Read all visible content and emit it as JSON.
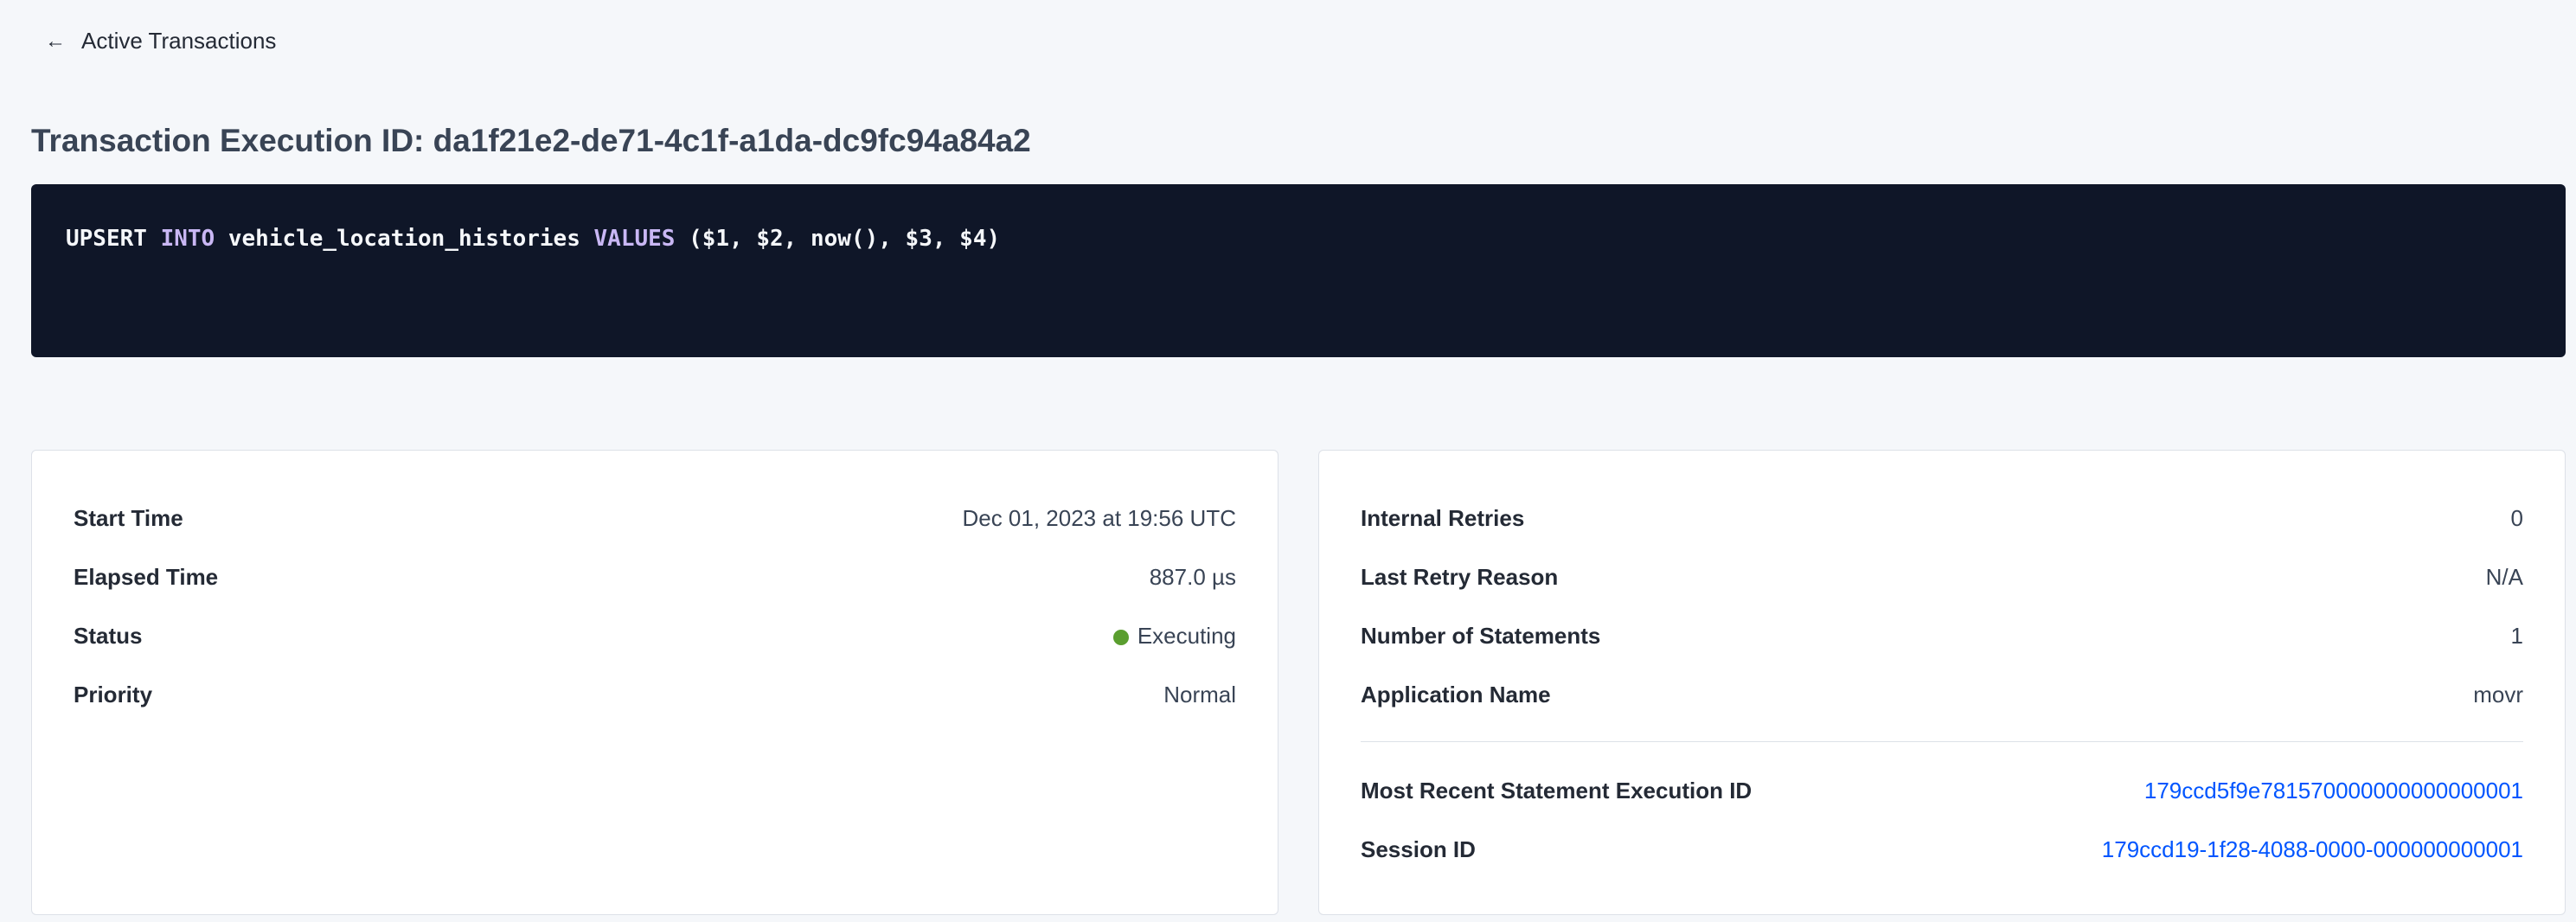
{
  "back_link": {
    "label": "Active Transactions",
    "icon": "arrow-left-icon"
  },
  "title": "Transaction Execution ID: da1f21e2-de71-4c1f-a1da-dc9fc94a84a2",
  "sql": {
    "kw1": "UPSERT",
    "kw2": "INTO",
    "table": "vehicle_location_histories",
    "kw3": "VALUES",
    "args": "($1, $2, now(), $3, $4)"
  },
  "left_card": {
    "rows": [
      {
        "label": "Start Time",
        "value": "Dec 01, 2023 at 19:56 UTC"
      },
      {
        "label": "Elapsed Time",
        "value": "887.0 µs"
      },
      {
        "label": "Status",
        "value": "Executing",
        "status_color": "#5a9e2f"
      },
      {
        "label": "Priority",
        "value": "Normal"
      }
    ]
  },
  "right_card": {
    "rows": [
      {
        "label": "Internal Retries",
        "value": "0"
      },
      {
        "label": "Last Retry Reason",
        "value": "N/A"
      },
      {
        "label": "Number of Statements",
        "value": "1"
      },
      {
        "label": "Application Name",
        "value": "movr"
      }
    ],
    "links": [
      {
        "label": "Most Recent Statement Execution ID",
        "value": "179ccd5f9e781570000000000000001"
      },
      {
        "label": "Session ID",
        "value": "179ccd19-1f28-4088-0000-000000000001"
      }
    ]
  },
  "colors": {
    "code_bg": "#0f1628",
    "keyword": "#c9b7f4",
    "link": "#0055ff"
  }
}
